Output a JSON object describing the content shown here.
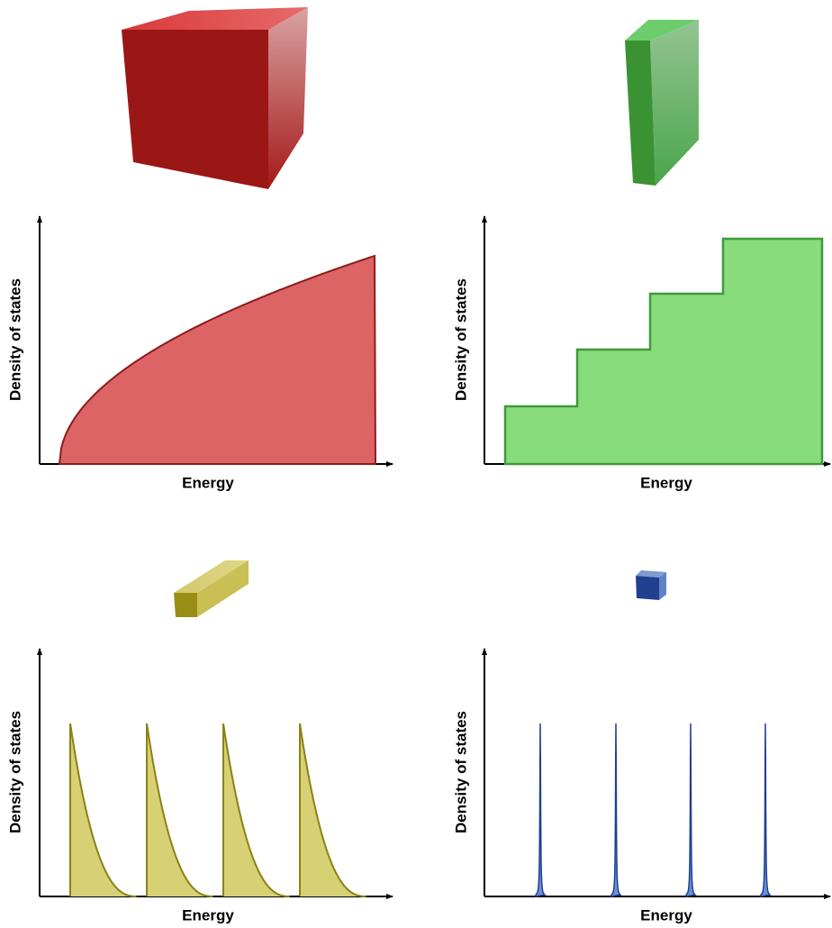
{
  "panels": [
    {
      "y_label": "Density of states",
      "x_label": "Energy"
    },
    {
      "y_label": "Density of states",
      "x_label": "Energy"
    },
    {
      "y_label": "Density of states",
      "x_label": "Energy"
    },
    {
      "y_label": "Density of states",
      "x_label": "Energy"
    }
  ]
}
